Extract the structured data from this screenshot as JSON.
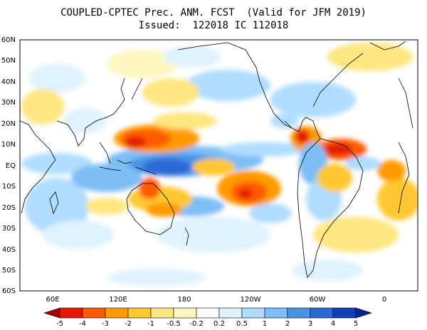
{
  "title_line1": "COUPLED-CPTEC Prec. ANM. FCST  (Valid for JFM 2019)",
  "title_line2": "Issued:  122018 IC 112018",
  "lat_labels": [
    "60N",
    "50N",
    "40N",
    "30N",
    "20N",
    "10N",
    "EQ",
    "10S",
    "20S",
    "30S",
    "40S",
    "50S",
    "60S"
  ],
  "lon_labels": [
    "60E",
    "120E",
    "180",
    "120W",
    "60W",
    "0"
  ],
  "colorbar": {
    "values": [
      "-5",
      "-4",
      "-3",
      "-2",
      "-1",
      "-0.5",
      "-0.2",
      "0.2",
      "0.5",
      "1",
      "2",
      "3",
      "4",
      "5"
    ],
    "colors": [
      "#a50000",
      "#e41a00",
      "#ff5a00",
      "#ff9a00",
      "#ffc830",
      "#ffe680",
      "#fff6c0",
      "#ffffff",
      "#dff2ff",
      "#b0ddff",
      "#7cbef5",
      "#4a94e8",
      "#2b6ad6",
      "#0e3fb5",
      "#00229a"
    ]
  },
  "ocean_tone": "#ffffff"
}
